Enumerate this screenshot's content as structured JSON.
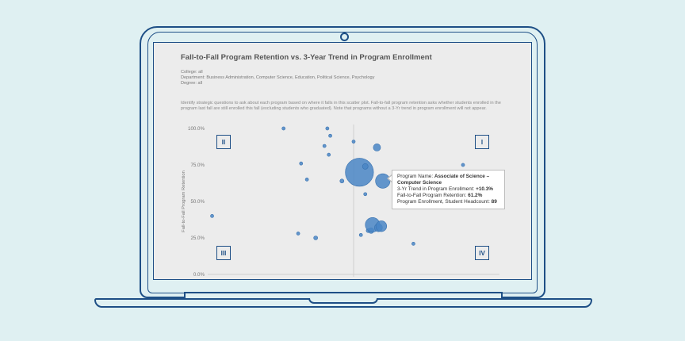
{
  "dashboard": {
    "title": "Fall-to-Fall Program Retention vs. 3-Year Trend in Program Enrollment",
    "filters": {
      "college": "College: all",
      "department": "Department: Business Administration, Computer Science, Education, Political Science, Psychology",
      "degree": "Degree: all"
    },
    "description": "Identify strategic questions to ask about each program based on where it falls in this scatter plot. Fall-to-fall program retention asks whether students enrolled in the program last fall are still enrolled this fall (excluding students who graduated). Note that programs without a 3-Yr trend in program enrollment will not appear.",
    "quadrants": {
      "q1": "I",
      "q2": "II",
      "q3": "III",
      "q4": "IV"
    },
    "tooltip": {
      "name_label": "Program Name: ",
      "name_value": "Associate of Science – Computer Science",
      "trend_label": "3-Yr Trend in Program Enrollment: ",
      "trend_value": "+10.3%",
      "retention_label": "Fall-to-Fall Program Retention: ",
      "retention_value": "61.2%",
      "headcount_label": "Program Enrollment, Student Headcount: ",
      "headcount_value": "89"
    }
  },
  "chart_data": {
    "type": "scatter",
    "ylabel": "Fall-to-Fall Program Retention",
    "y_ticks": [
      "100.0%",
      "75.0%",
      "50.0%",
      "25.0%",
      "0.0%"
    ],
    "ylim": [
      0,
      100
    ],
    "xlim": [
      -100,
      100
    ],
    "color": "#4a86c5",
    "points": [
      {
        "x": -97,
        "y": 40,
        "size": 2
      },
      {
        "x": -48,
        "y": 100,
        "size": 2
      },
      {
        "x": -38,
        "y": 28,
        "size": 2
      },
      {
        "x": -36,
        "y": 76,
        "size": 2
      },
      {
        "x": -32,
        "y": 65,
        "size": 2
      },
      {
        "x": -26,
        "y": 25,
        "size": 3
      },
      {
        "x": -18,
        "y": 100,
        "size": 2
      },
      {
        "x": -16,
        "y": 95,
        "size": 2
      },
      {
        "x": -20,
        "y": 88,
        "size": 2
      },
      {
        "x": -17,
        "y": 82,
        "size": 2
      },
      {
        "x": -8,
        "y": 64,
        "size": 3
      },
      {
        "x": 0,
        "y": 91,
        "size": 2
      },
      {
        "x": 4,
        "y": 70,
        "size": 150
      },
      {
        "x": 8,
        "y": 74,
        "size": 6
      },
      {
        "x": 10,
        "y": 30,
        "size": 3
      },
      {
        "x": 12,
        "y": 30,
        "size": 6
      },
      {
        "x": 13,
        "y": 34,
        "size": 40
      },
      {
        "x": 16,
        "y": 87,
        "size": 10
      },
      {
        "x": 17,
        "y": 32,
        "size": 12
      },
      {
        "x": 19,
        "y": 33,
        "size": 22
      },
      {
        "x": 20,
        "y": 64,
        "size": 40
      },
      {
        "x": 8,
        "y": 55,
        "size": 2
      },
      {
        "x": 41,
        "y": 21,
        "size": 2
      },
      {
        "x": 75,
        "y": 75,
        "size": 2
      },
      {
        "x": 5,
        "y": 27,
        "size": 2
      }
    ]
  }
}
